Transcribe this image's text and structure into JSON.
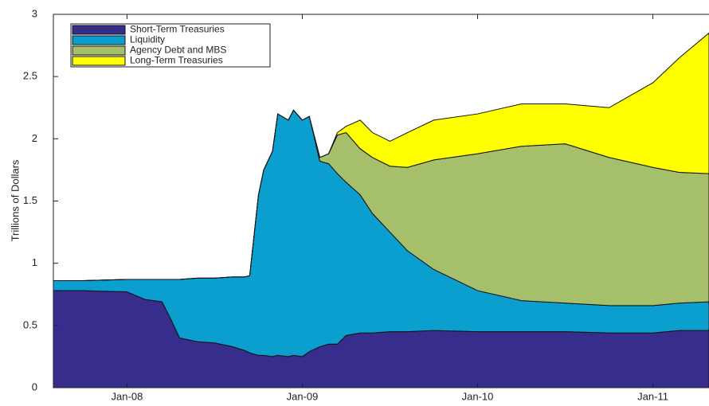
{
  "chart_data": {
    "type": "stacked_area",
    "y_label": "Trillions of Dollars",
    "x": [
      2007.58,
      2007.75,
      2008.0,
      2008.1,
      2008.2,
      2008.25,
      2008.3,
      2008.4,
      2008.5,
      2008.6,
      2008.67,
      2008.7,
      2008.75,
      2008.78,
      2008.83,
      2008.86,
      2008.92,
      2008.95,
      2009.0,
      2009.04,
      2009.1,
      2009.15,
      2009.2,
      2009.25,
      2009.33,
      2009.4,
      2009.5,
      2009.6,
      2009.75,
      2010.0,
      2010.25,
      2010.5,
      2010.75,
      2011.0,
      2011.15,
      2011.32
    ],
    "series": [
      {
        "name": "Short-Term Treasuries",
        "color": "#372d8c",
        "values": [
          0.78,
          0.78,
          0.77,
          0.71,
          0.69,
          0.55,
          0.4,
          0.37,
          0.36,
          0.33,
          0.3,
          0.28,
          0.26,
          0.26,
          0.25,
          0.26,
          0.25,
          0.26,
          0.25,
          0.29,
          0.33,
          0.35,
          0.35,
          0.42,
          0.44,
          0.44,
          0.45,
          0.45,
          0.46,
          0.45,
          0.45,
          0.45,
          0.44,
          0.44,
          0.46,
          0.46
        ]
      },
      {
        "name": "Liquidity",
        "color": "#0b9fd0",
        "values": [
          0.08,
          0.08,
          0.1,
          0.16,
          0.18,
          0.32,
          0.47,
          0.51,
          0.52,
          0.56,
          0.59,
          0.62,
          1.29,
          1.49,
          1.65,
          1.94,
          1.9,
          1.97,
          1.9,
          1.89,
          1.49,
          1.45,
          1.37,
          1.23,
          1.11,
          0.96,
          0.8,
          0.65,
          0.49,
          0.33,
          0.25,
          0.23,
          0.22,
          0.22,
          0.22,
          0.23
        ]
      },
      {
        "name": "Agency Debt and MBS",
        "color": "#a6bf6b",
        "values": [
          0,
          0,
          0,
          0,
          0,
          0,
          0,
          0,
          0,
          0,
          0,
          0,
          0,
          0,
          0,
          0,
          0,
          0,
          0,
          0,
          0.03,
          0.08,
          0.31,
          0.4,
          0.37,
          0.45,
          0.53,
          0.67,
          0.88,
          1.1,
          1.24,
          1.28,
          1.19,
          1.11,
          1.05,
          1.03
        ]
      },
      {
        "name": "Long-Term Treasuries",
        "color": "#ffff00",
        "values": [
          0,
          0,
          0,
          0,
          0,
          0,
          0,
          0,
          0,
          0,
          0,
          0,
          0,
          0,
          0,
          0,
          0,
          0,
          0,
          0,
          0,
          0,
          0.02,
          0.05,
          0.23,
          0.2,
          0.2,
          0.28,
          0.32,
          0.32,
          0.34,
          0.32,
          0.4,
          0.68,
          0.92,
          1.13
        ]
      }
    ],
    "xlim": [
      2007.58,
      2011.32
    ],
    "xticks": [
      {
        "value": 2008,
        "label": "Jan-08"
      },
      {
        "value": 2009,
        "label": "Jan-09"
      },
      {
        "value": 2010,
        "label": "Jan-10"
      },
      {
        "value": 2011,
        "label": "Jan-11"
      }
    ],
    "ylim": [
      0,
      3
    ],
    "yticks": [
      0,
      0.5,
      1,
      1.5,
      2,
      2.5,
      3
    ],
    "legend": "upper left"
  }
}
